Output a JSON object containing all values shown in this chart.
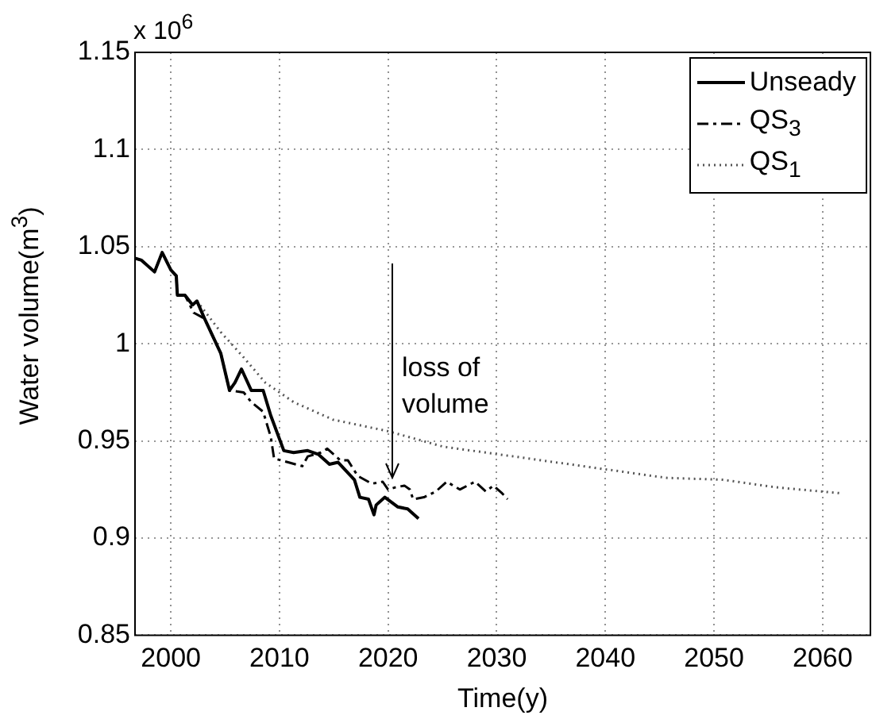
{
  "chart_data": {
    "type": "line",
    "xlabel": "Time(y)",
    "ylabel": "Water volume(m$^{3}$)",
    "xlim": [
      1996.7,
      2064.4
    ],
    "xticks": [
      2000,
      2010,
      2020,
      2030,
      2040,
      2050,
      2060
    ],
    "ylim": [
      0.85,
      1.15
    ],
    "yticks": [
      0.85,
      0.9,
      0.95,
      1,
      1.05,
      1.1,
      1.15
    ],
    "grid": true,
    "legend": "top right",
    "marker": "none",
    "annotations": [
      "x 10$^{6}$",
      "loss of\nvolume"
    ],
    "series": [
      {
        "name": "Unseady",
        "color": "#000000",
        "line_style": "solid",
        "x": [
          1996.7,
          1997.3,
          1998.5,
          1999.2,
          2000,
          2000.5,
          2000.6,
          2001.3,
          2002,
          2002.4,
          2003.1,
          2004.6,
          2005.4,
          2005.9,
          2006.5,
          2007.4,
          2008.5,
          2009.2,
          2010.4,
          2011.3,
          2012.6,
          2013.6,
          2014.6,
          2015.4,
          2016.9,
          2017.4,
          2018.2,
          2018.7,
          2018.9,
          2019.7,
          2020.9,
          2021.8,
          2022.8
        ],
        "values": [
          1.044,
          1.043,
          1.037,
          1.047,
          1.038,
          1.035,
          1.025,
          1.025,
          1.02,
          1.022,
          1.013,
          0.995,
          0.976,
          0.98,
          0.987,
          0.976,
          0.976,
          0.963,
          0.945,
          0.944,
          0.945,
          0.943,
          0.938,
          0.939,
          0.93,
          0.921,
          0.92,
          0.912,
          0.917,
          0.921,
          0.916,
          0.915,
          0.91
        ]
      },
      {
        "name": "QS$_{3}$",
        "color": "#000000",
        "line_style": "dashed",
        "x": [
          1996.7,
          1997.3,
          1998.5,
          1999.2,
          2000,
          2000.5,
          2000.6,
          2001.3,
          2002.1,
          2003.1,
          2004.6,
          2005.4,
          2006.7,
          2007.4,
          2008.5,
          2009.2,
          2009.5,
          2010.8,
          2012.1,
          2012.6,
          2013.8,
          2014.4,
          2015.6,
          2016.3,
          2017.2,
          2018.5,
          2019.5,
          2020,
          2020.6,
          2021.5,
          2022,
          2022.3,
          2023.3,
          2024.4,
          2025.4,
          2026.6,
          2028,
          2029,
          2029.7,
          2030.5,
          2031
        ],
        "values": [
          1.044,
          1.043,
          1.037,
          1.047,
          1.038,
          1.035,
          1.025,
          1.025,
          1.016,
          1.013,
          0.995,
          0.976,
          0.975,
          0.97,
          0.965,
          0.952,
          0.941,
          0.939,
          0.937,
          0.942,
          0.944,
          0.946,
          0.94,
          0.94,
          0.932,
          0.928,
          0.929,
          0.925,
          0.926,
          0.927,
          0.925,
          0.92,
          0.921,
          0.924,
          0.929,
          0.925,
          0.929,
          0.924,
          0.927,
          0.923,
          0.92
        ]
      },
      {
        "name": "QS$_{1}$",
        "color": "#555555",
        "line_style": "dotted",
        "x": [
          2002.4,
          2004.6,
          2006.7,
          2008.7,
          2011.3,
          2014.9,
          2020,
          2025.1,
          2030.3,
          2035.4,
          2040.5,
          2045.6,
          2050.8,
          2055.9,
          2061.8
        ],
        "values": [
          1.022,
          1.006,
          0.993,
          0.98,
          0.97,
          0.961,
          0.955,
          0.947,
          0.943,
          0.939,
          0.935,
          0.931,
          0.93,
          0.926,
          0.923
        ]
      }
    ]
  }
}
